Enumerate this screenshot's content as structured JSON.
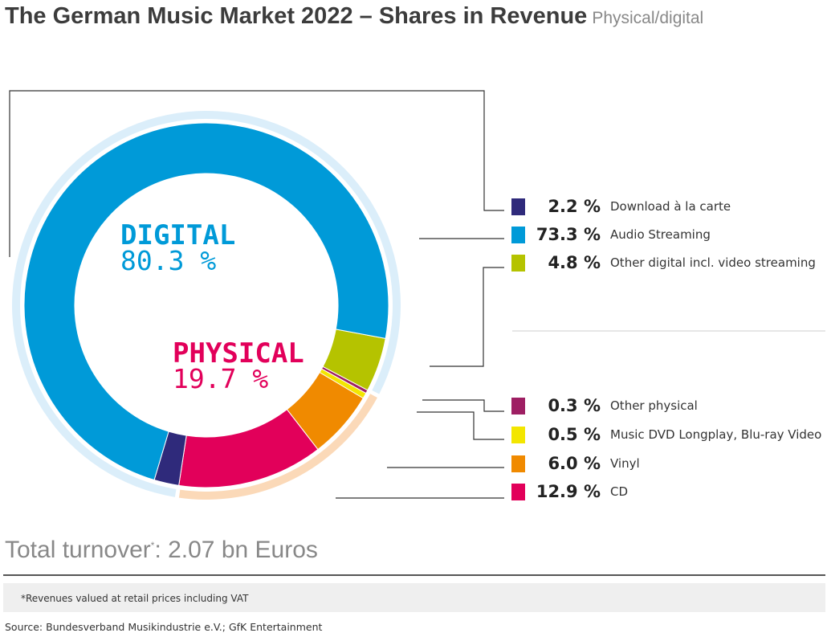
{
  "header": {
    "title": "The German Music Market 2022 – Shares in Revenue",
    "subtitle": "Physical/digital"
  },
  "chart_data": {
    "type": "pie",
    "title": "The German Music Market 2022 – Shares in Revenue",
    "groups": [
      {
        "name": "DIGITAL",
        "value_label": "80.3 %",
        "value": 80.3,
        "color": "#009ad8",
        "ring_color": "#dbeefa"
      },
      {
        "name": "PHYSICAL",
        "value_label": "19.7 %",
        "value": 19.7,
        "color": "#e2005a",
        "ring_color": "#fbd9b8"
      }
    ],
    "slices": [
      {
        "name": "Other digital incl. video streaming",
        "value": 4.8,
        "label": "4.8 %",
        "group": "digital",
        "color": "#b5c300"
      },
      {
        "name": "Other physical",
        "value": 0.3,
        "label": "0.3 %",
        "group": "physical",
        "color": "#9e1f63"
      },
      {
        "name": "Music DVD Longplay, Blu-ray Video",
        "value": 0.5,
        "label": "0.5 %",
        "group": "physical",
        "color": "#f3e600"
      },
      {
        "name": "Vinyl",
        "value": 6.0,
        "label": "6.0 %",
        "group": "physical",
        "color": "#f08a00"
      },
      {
        "name": "CD",
        "value": 12.9,
        "label": "12.9 %",
        "group": "physical",
        "color": "#e2005a"
      },
      {
        "name": "Download à la carte",
        "value": 2.2,
        "label": "2.2 %",
        "group": "digital",
        "color": "#2f2a7b"
      },
      {
        "name": "Audio Streaming",
        "value": 73.3,
        "label": "73.3 %",
        "group": "digital",
        "color": "#009ad8"
      }
    ],
    "legend_order": [
      5,
      6,
      0,
      1,
      2,
      3,
      4
    ],
    "legend_placement": "right"
  },
  "footer": {
    "total_label": "Total turnover",
    "total_mark": "*",
    "total_value": ": 2.07 bn Euros",
    "note": "*Revenues valued at retail prices including VAT",
    "source": "Source: Bundesverband Musikindustrie e.V.; GfK Entertainment"
  }
}
